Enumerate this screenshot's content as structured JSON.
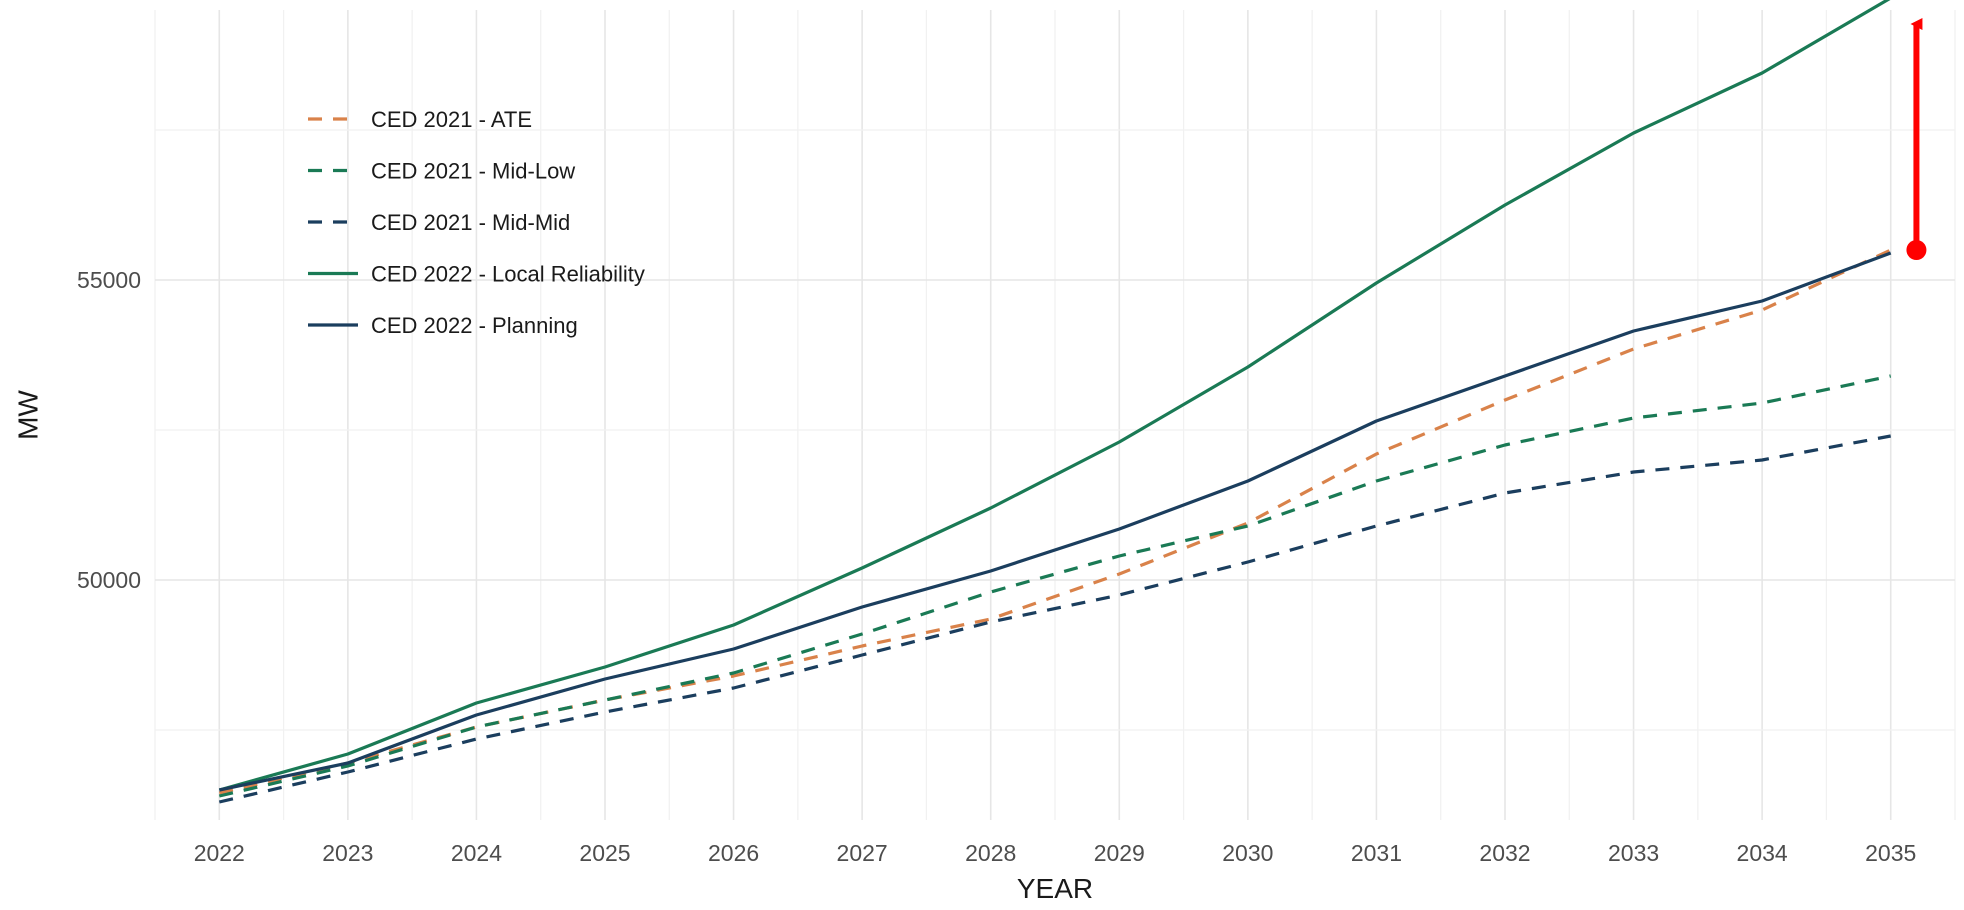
{
  "chart_data": {
    "type": "line",
    "xlabel": "YEAR",
    "ylabel": "MW",
    "x": [
      2022,
      2023,
      2024,
      2025,
      2026,
      2027,
      2028,
      2029,
      2030,
      2031,
      2032,
      2033,
      2034,
      2035
    ],
    "xlim": [
      2021.5,
      2035.5
    ],
    "ylim": [
      46000,
      59500
    ],
    "yticks": [
      50000,
      55000
    ],
    "yticks_minor": [
      47500,
      52500,
      57500
    ],
    "grid": true,
    "legend_position": "top-left (inside plot)",
    "series": [
      {
        "name": "CED 2021 - ATE",
        "color": "#d9824a",
        "dash": "dashed",
        "values": [
          46450,
          46950,
          47550,
          48000,
          48400,
          48900,
          49350,
          50100,
          50950,
          52100,
          53000,
          53850,
          54500,
          55500
        ]
      },
      {
        "name": "CED 2021 - Mid-Low",
        "color": "#1a7a55",
        "dash": "dashed",
        "values": [
          46400,
          46900,
          47550,
          48000,
          48450,
          49100,
          49800,
          50400,
          50900,
          51650,
          52250,
          52700,
          52950,
          53400
        ]
      },
      {
        "name": "CED 2021 - Mid-Mid",
        "color": "#1b3e5e",
        "dash": "dashed",
        "values": [
          46300,
          46800,
          47350,
          47800,
          48200,
          48750,
          49300,
          49750,
          50300,
          50900,
          51450,
          51800,
          52000,
          52400
        ]
      },
      {
        "name": "CED 2022 - Local Reliability",
        "color": "#1a7a55",
        "dash": "solid",
        "values": [
          46500,
          47100,
          47950,
          48550,
          49250,
          50200,
          51200,
          52300,
          53550,
          54950,
          56250,
          57450,
          58450,
          59700
        ]
      },
      {
        "name": "CED 2022 - Planning",
        "color": "#1b3e5e",
        "dash": "solid",
        "values": [
          46500,
          46950,
          47750,
          48350,
          48850,
          49550,
          50150,
          50850,
          51650,
          52650,
          53400,
          54150,
          54650,
          55450
        ]
      }
    ],
    "annotations": [
      {
        "type": "arrow",
        "color": "#ff0000",
        "x": 2035.2,
        "y_from": 55500,
        "y_to": 59500
      }
    ]
  }
}
